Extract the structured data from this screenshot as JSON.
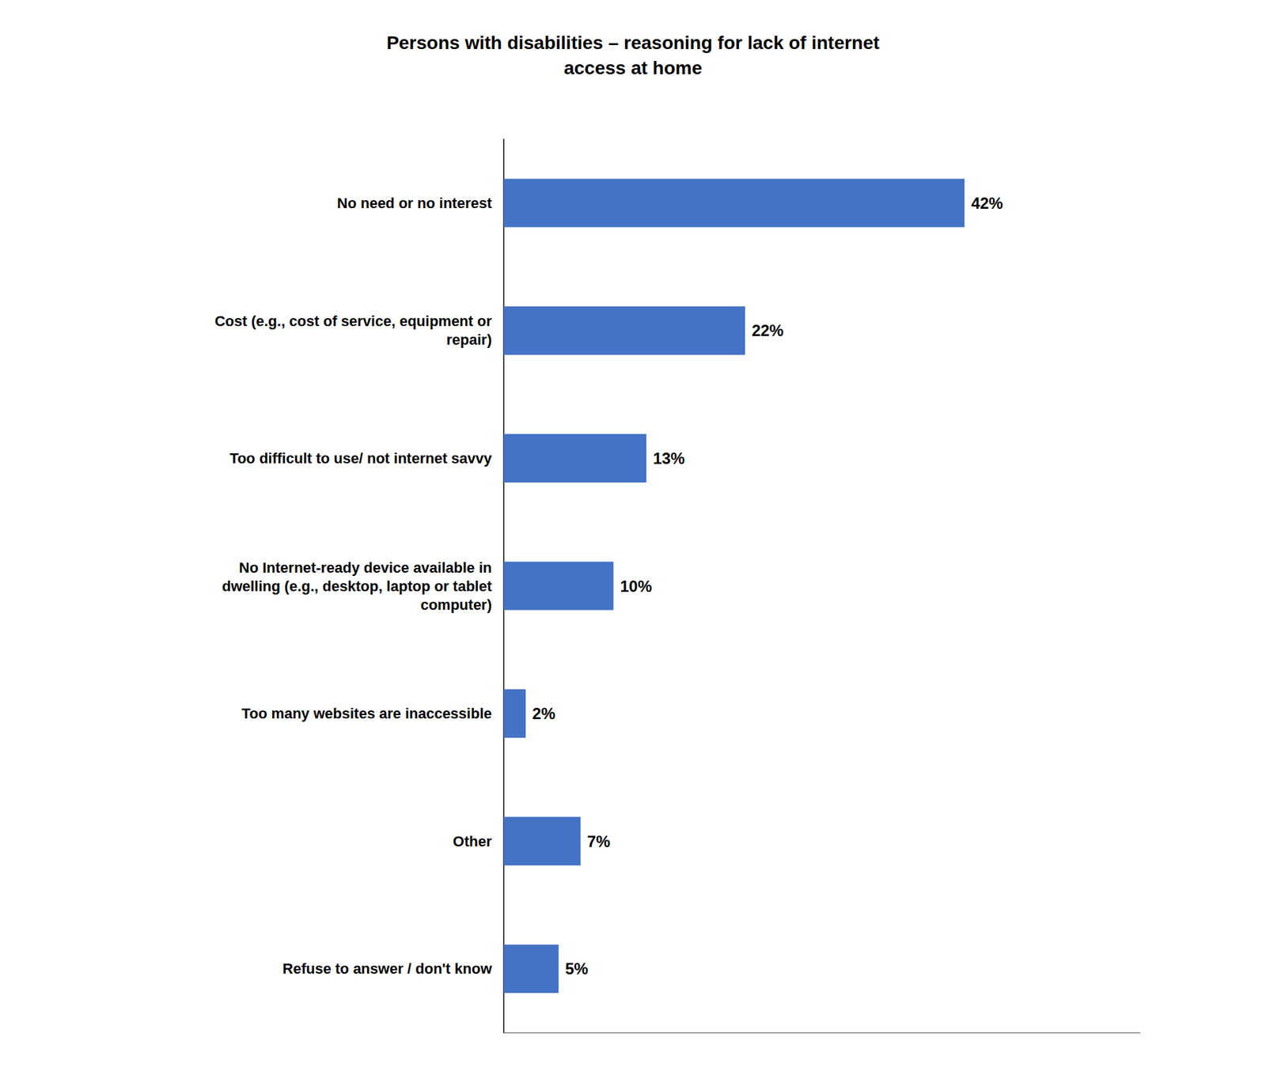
{
  "chart_data": {
    "type": "bar",
    "orientation": "horizontal",
    "title": "Persons with disabilities – reasoning for lack of internet\naccess at home",
    "categories": [
      "No need or no interest",
      "Cost (e.g., cost of service, equipment or\nrepair)",
      "Too difficult to use/ not internet savvy",
      "No Internet-ready device available in\ndwelling (e.g., desktop, laptop or tablet\ncomputer)",
      "Too many websites are inaccessible",
      "Other",
      "Refuse to answer / don't know"
    ],
    "values": [
      42,
      22,
      13,
      10,
      2,
      7,
      5
    ],
    "value_labels": [
      "42%",
      "22%",
      "13%",
      "10%",
      "2%",
      "7%",
      "5%"
    ],
    "data_labels": true,
    "color": "#4472C4",
    "xlim": [
      0,
      58
    ],
    "grid": false,
    "tick_labels": "y"
  }
}
